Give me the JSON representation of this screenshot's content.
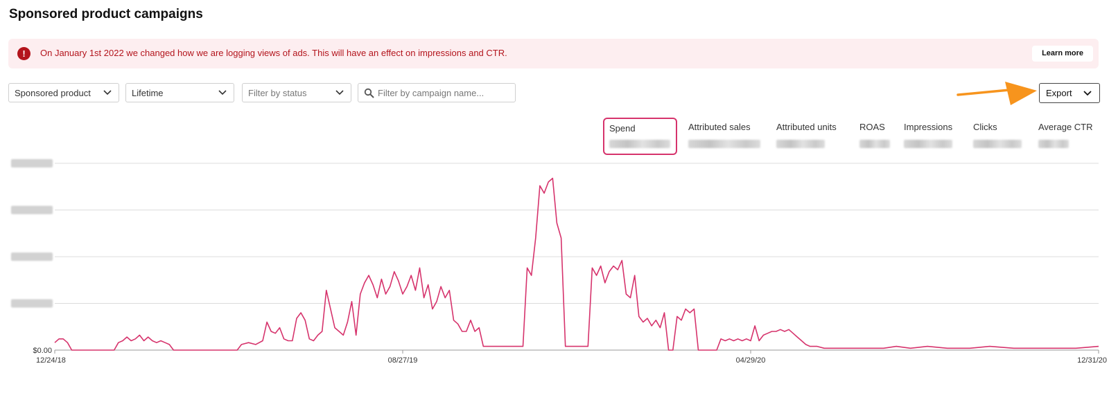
{
  "page": {
    "title": "Sponsored product campaigns"
  },
  "alert": {
    "icon": "exclamation-icon",
    "message": "On January 1st 2022 we changed how we are logging views of ads. This will have an effect on impressions and CTR.",
    "button_label": "Learn more",
    "color": "#b3141c",
    "background": "#fdeef0"
  },
  "filters": {
    "campaign_type": "Sponsored product",
    "date_range": "Lifetime",
    "status_placeholder": "Filter by status",
    "search_placeholder": "Filter by campaign name..."
  },
  "toolbar": {
    "export_label": "Export",
    "annotation": "orange-arrow-pointing-to-export"
  },
  "metrics": [
    {
      "label": "Spend",
      "selected": true
    },
    {
      "label": "Attributed sales"
    },
    {
      "label": "Attributed units"
    },
    {
      "label": "ROAS"
    },
    {
      "label": "Impressions"
    },
    {
      "label": "Clicks"
    },
    {
      "label": "Average CTR"
    }
  ],
  "chart_data": {
    "type": "line",
    "series": [
      {
        "color": "#d6336c"
      }
    ],
    "x_ticks": [
      "12/24/18",
      "08/27/19",
      "04/29/20",
      "12/31/20"
    ],
    "y_ticks": [
      "$0.00"
    ],
    "y_tick_count": 5,
    "grid": true,
    "ylim": [
      0,
      100
    ],
    "points": [
      [
        "12/24/18",
        4
      ],
      [
        "12/27/18",
        6
      ],
      [
        "12/30/18",
        6
      ],
      [
        "01/02/19",
        4
      ],
      [
        "01/05/19",
        0
      ],
      [
        "02/04/19",
        0
      ],
      [
        "02/07/19",
        4
      ],
      [
        "02/10/19",
        5
      ],
      [
        "02/13/19",
        7
      ],
      [
        "02/16/19",
        5
      ],
      [
        "02/19/19",
        6
      ],
      [
        "02/22/19",
        8
      ],
      [
        "02/25/19",
        5
      ],
      [
        "02/28/19",
        7
      ],
      [
        "03/03/19",
        5
      ],
      [
        "03/06/19",
        4
      ],
      [
        "03/09/19",
        5
      ],
      [
        "03/12/19",
        4
      ],
      [
        "03/15/19",
        3
      ],
      [
        "03/18/19",
        0
      ],
      [
        "05/02/19",
        0
      ],
      [
        "05/05/19",
        3
      ],
      [
        "05/10/19",
        4
      ],
      [
        "05/15/19",
        3
      ],
      [
        "05/20/19",
        5
      ],
      [
        "05/23/19",
        15
      ],
      [
        "05/26/19",
        10
      ],
      [
        "05/29/19",
        9
      ],
      [
        "06/01/19",
        12
      ],
      [
        "06/04/19",
        6
      ],
      [
        "06/07/19",
        5
      ],
      [
        "06/10/19",
        5
      ],
      [
        "06/13/19",
        17
      ],
      [
        "06/16/19",
        20
      ],
      [
        "06/19/19",
        16
      ],
      [
        "06/22/19",
        6
      ],
      [
        "06/25/19",
        5
      ],
      [
        "06/28/19",
        8
      ],
      [
        "07/01/19",
        10
      ],
      [
        "07/04/19",
        32
      ],
      [
        "07/07/19",
        22
      ],
      [
        "07/10/19",
        12
      ],
      [
        "07/13/19",
        10
      ],
      [
        "07/16/19",
        8
      ],
      [
        "07/19/19",
        15
      ],
      [
        "07/22/19",
        26
      ],
      [
        "07/25/19",
        8
      ],
      [
        "07/28/19",
        30
      ],
      [
        "07/31/19",
        36
      ],
      [
        "08/03/19",
        40
      ],
      [
        "08/06/19",
        35
      ],
      [
        "08/09/19",
        28
      ],
      [
        "08/12/19",
        38
      ],
      [
        "08/15/19",
        30
      ],
      [
        "08/18/19",
        34
      ],
      [
        "08/21/19",
        42
      ],
      [
        "08/24/19",
        37
      ],
      [
        "08/27/19",
        30
      ],
      [
        "08/30/19",
        34
      ],
      [
        "09/02/19",
        40
      ],
      [
        "09/05/19",
        32
      ],
      [
        "09/08/19",
        44
      ],
      [
        "09/11/19",
        28
      ],
      [
        "09/14/19",
        35
      ],
      [
        "09/17/19",
        22
      ],
      [
        "09/20/19",
        26
      ],
      [
        "09/23/19",
        34
      ],
      [
        "09/26/19",
        28
      ],
      [
        "09/29/19",
        32
      ],
      [
        "10/02/19",
        16
      ],
      [
        "10/05/19",
        14
      ],
      [
        "10/08/19",
        10
      ],
      [
        "10/11/19",
        10
      ],
      [
        "10/14/19",
        16
      ],
      [
        "10/17/19",
        10
      ],
      [
        "10/20/19",
        12
      ],
      [
        "10/23/19",
        2
      ],
      [
        "11/20/19",
        2
      ],
      [
        "11/23/19",
        44
      ],
      [
        "11/26/19",
        40
      ],
      [
        "11/29/19",
        60
      ],
      [
        "12/02/19",
        88
      ],
      [
        "12/05/19",
        84
      ],
      [
        "12/08/19",
        90
      ],
      [
        "12/11/19",
        92
      ],
      [
        "12/14/19",
        68
      ],
      [
        "12/17/19",
        60
      ],
      [
        "12/20/19",
        2
      ],
      [
        "01/05/20",
        2
      ],
      [
        "01/08/20",
        44
      ],
      [
        "01/11/20",
        40
      ],
      [
        "01/14/20",
        45
      ],
      [
        "01/17/20",
        36
      ],
      [
        "01/20/20",
        42
      ],
      [
        "01/23/20",
        45
      ],
      [
        "01/26/20",
        43
      ],
      [
        "01/29/20",
        48
      ],
      [
        "02/01/20",
        30
      ],
      [
        "02/04/20",
        28
      ],
      [
        "02/07/20",
        40
      ],
      [
        "02/10/20",
        18
      ],
      [
        "02/13/20",
        15
      ],
      [
        "02/16/20",
        17
      ],
      [
        "02/19/20",
        13
      ],
      [
        "02/22/20",
        16
      ],
      [
        "02/25/20",
        12
      ],
      [
        "02/28/20",
        20
      ],
      [
        "03/02/20",
        0
      ],
      [
        "03/05/20",
        0
      ],
      [
        "03/08/20",
        18
      ],
      [
        "03/11/20",
        16
      ],
      [
        "03/14/20",
        22
      ],
      [
        "03/17/20",
        20
      ],
      [
        "03/20/20",
        22
      ],
      [
        "03/23/20",
        0
      ],
      [
        "04/05/20",
        0
      ],
      [
        "04/08/20",
        6
      ],
      [
        "04/11/20",
        5
      ],
      [
        "04/14/20",
        6
      ],
      [
        "04/17/20",
        5
      ],
      [
        "04/20/20",
        6
      ],
      [
        "04/23/20",
        5
      ],
      [
        "04/26/20",
        6
      ],
      [
        "04/29/20",
        5
      ],
      [
        "05/02/20",
        13
      ],
      [
        "05/05/20",
        5
      ],
      [
        "05/08/20",
        8
      ],
      [
        "05/11/20",
        9
      ],
      [
        "05/14/20",
        10
      ],
      [
        "05/17/20",
        10
      ],
      [
        "05/20/20",
        11
      ],
      [
        "05/23/20",
        10
      ],
      [
        "05/26/20",
        11
      ],
      [
        "05/29/20",
        9
      ],
      [
        "06/01/20",
        7
      ],
      [
        "06/04/20",
        5
      ],
      [
        "06/07/20",
        3
      ],
      [
        "06/10/20",
        2
      ],
      [
        "06/15/20",
        2
      ],
      [
        "06/20/20",
        1
      ],
      [
        "07/01/20",
        1
      ],
      [
        "07/15/20",
        1
      ],
      [
        "08/01/20",
        1
      ],
      [
        "08/10/20",
        2
      ],
      [
        "08/20/20",
        1
      ],
      [
        "09/01/20",
        2
      ],
      [
        "09/15/20",
        1
      ],
      [
        "10/01/20",
        1
      ],
      [
        "10/15/20",
        2
      ],
      [
        "11/01/20",
        1
      ],
      [
        "11/15/20",
        1
      ],
      [
        "12/01/20",
        1
      ],
      [
        "12/15/20",
        1
      ],
      [
        "12/31/20",
        2
      ]
    ]
  }
}
